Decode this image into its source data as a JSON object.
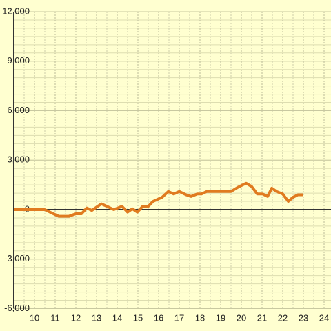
{
  "chart_data": {
    "type": "line",
    "x": [
      9,
      10.5,
      10.83,
      11.17,
      11.67,
      12,
      12.27,
      12.53,
      12.77,
      13,
      13.23,
      13.5,
      13.83,
      14.23,
      14.5,
      14.73,
      14.97,
      15.23,
      15.5,
      15.73,
      16.17,
      16.47,
      16.73,
      17,
      17.33,
      17.57,
      17.87,
      18.07,
      18.33,
      19.5,
      19.83,
      20.23,
      20.5,
      20.77,
      21.03,
      21.27,
      21.47,
      21.7,
      22,
      22.27,
      22.5,
      22.73,
      23
    ],
    "series": [
      {
        "color": "#e07b20",
        "values": [
          0,
          0,
          -200,
          -400,
          -400,
          -250,
          -250,
          100,
          -50,
          150,
          350,
          200,
          0,
          200,
          -150,
          50,
          -150,
          200,
          200,
          500,
          750,
          1100,
          950,
          1100,
          900,
          800,
          950,
          950,
          1100,
          1100,
          1350,
          1600,
          1400,
          950,
          950,
          800,
          1300,
          1100,
          950,
          500,
          750,
          900,
          900
        ]
      }
    ],
    "xlim": [
      9,
      24
    ],
    "xticks": [
      10,
      11,
      12,
      13,
      14,
      15,
      16,
      17,
      18,
      19,
      20,
      21,
      22,
      23,
      24
    ],
    "ylim": [
      -6000,
      12000
    ],
    "yticks": [
      {
        "value": -6000,
        "label": "-6,000"
      },
      {
        "value": -3000,
        "label": "-3,000"
      },
      0,
      {
        "value": 3000,
        "label": "3,000"
      },
      {
        "value": 6000,
        "label": "6,000"
      },
      {
        "value": 9000,
        "label": "9,000"
      },
      {
        "value": 12000,
        "label": "12,000"
      }
    ],
    "grid": true
  }
}
